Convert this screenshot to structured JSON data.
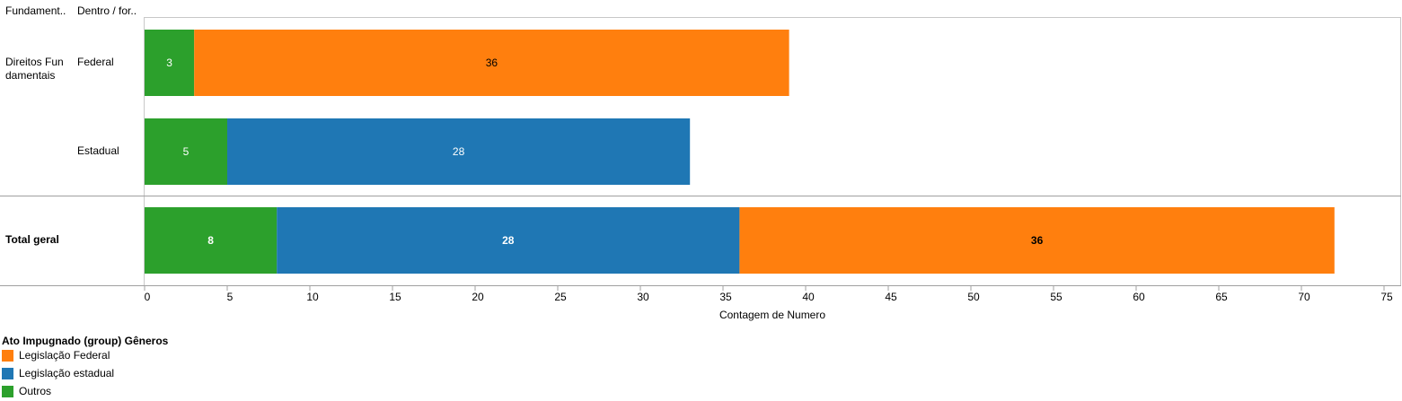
{
  "headers": {
    "col1": "Fundament..",
    "col2": "Dentro / for.."
  },
  "rows": {
    "group1_label": "Direitos Fun damentais",
    "federal_label": "Federal",
    "estadual_label": "Estadual",
    "total_label": "Total geral"
  },
  "legend": {
    "title": "Ato Impugnado (group) Gêneros",
    "items": [
      {
        "label": "Legislação Federal",
        "color": "#ff7f0e"
      },
      {
        "label": "Legislação estadual",
        "color": "#1f77b4"
      },
      {
        "label": "Outros",
        "color": "#2ca02c"
      }
    ]
  },
  "chart_data": {
    "type": "bar",
    "orientation": "horizontal",
    "stacked": true,
    "categories": [
      "Direitos Fundamentais / Federal",
      "Direitos Fundamentais / Estadual",
      "Total geral"
    ],
    "series": [
      {
        "name": "Outros",
        "values": [
          3,
          5,
          8
        ],
        "color": "#2ca02c"
      },
      {
        "name": "Legislação estadual",
        "values": [
          0,
          28,
          28
        ],
        "color": "#1f77b4"
      },
      {
        "name": "Legislação Federal",
        "values": [
          36,
          0,
          36
        ],
        "color": "#ff7f0e"
      }
    ],
    "xlabel": "Contagem de Numero",
    "xlim": [
      0,
      75
    ],
    "xticks": [
      0,
      5,
      10,
      15,
      20,
      25,
      30,
      35,
      40,
      45,
      50,
      55,
      60,
      65,
      70,
      75
    ]
  }
}
